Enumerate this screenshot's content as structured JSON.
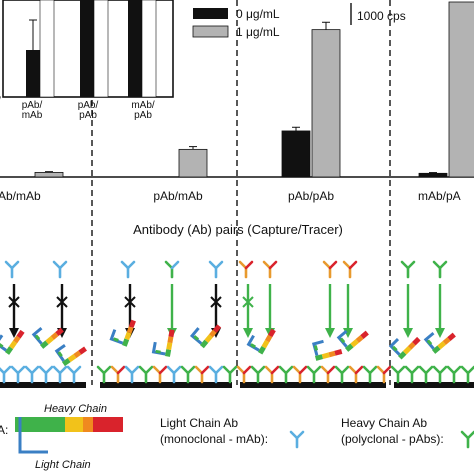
{
  "legend": {
    "series": [
      {
        "label": "0 μg/mL",
        "color": "#111111"
      },
      {
        "label": "1 μg/mL",
        "color": "#b3b3b3"
      }
    ],
    "scale_bar": "1000 cps"
  },
  "inset": {
    "labels": [
      "pAb/\nmAb",
      "pAb/\npAb",
      "mAb/\npAb"
    ],
    "axis_tick": "/"
  },
  "main_labels": [
    "Ab/mAb",
    "pAb/mAb",
    "pAb/pAb",
    "mAb/pA"
  ],
  "section_title": "Antibody (Ab) pairs (Capture/Tracer)",
  "schematic": {
    "prefix": "A:",
    "heavy_chain": "Heavy Chain",
    "light_chain": "Light Chain",
    "light_chain_ab": "Light Chain Ab",
    "light_chain_ab_sub": "(monoclonal - mAb):",
    "heavy_chain_ab": "Heavy Chain Ab",
    "heavy_chain_ab_sub": "(polyclonal - pAbs):"
  },
  "colors": {
    "mab": "#5aaee0",
    "pab": "#e89a2e",
    "heavy_green": "#3fb24a",
    "heavy_yellow": "#f2c21a",
    "heavy_orange": "#f08a1f",
    "heavy_red": "#d9232c",
    "light_blue": "#3a7fc4",
    "arrow_green": "#3fb24a",
    "arrow_black": "#111111"
  },
  "chart_data": {
    "type": "bar",
    "categories": [
      "Ab/mAb",
      "pAb/mAb",
      "pAb/pAb",
      "mAb/pA"
    ],
    "series": [
      {
        "name": "0 μg/mL",
        "values": [
          0,
          0,
          500,
          40
        ]
      },
      {
        "name": "1 μg/mL",
        "values": [
          50,
          300,
          1600,
          1900
        ]
      }
    ],
    "errors": [
      [
        0,
        0,
        40,
        8
      ],
      [
        8,
        30,
        80,
        0
      ]
    ],
    "ylim": [
      0,
      1900
    ]
  }
}
